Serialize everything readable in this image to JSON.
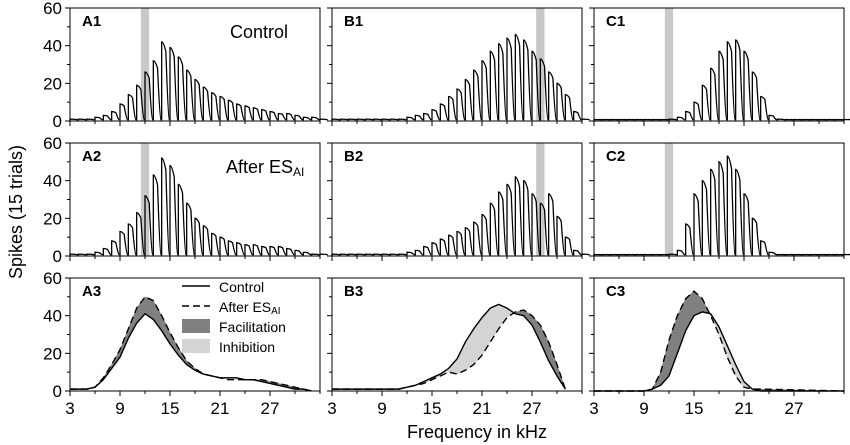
{
  "figure": {
    "ylabel": "Spikes (15 trials)",
    "xlabel": "Frequency in kHz",
    "x_ticks": [
      3,
      9,
      15,
      21,
      27
    ],
    "y_ticks": [
      0,
      20,
      40,
      60
    ],
    "ylim": [
      0,
      60
    ],
    "xlim": [
      3,
      33
    ]
  },
  "colors": {
    "axis": "#000000",
    "highlight": "#c8c8c8",
    "facilitation": "#808080",
    "inhibition": "#d4d4d4"
  },
  "annotations": {
    "control": "Control",
    "after_prefix": "After ES",
    "after_sub": "AI"
  },
  "legend": {
    "control": "Control",
    "after_prefix": "After ES",
    "after_sub": "AI",
    "facilitation": "Facilitation",
    "inhibition": "Inhibition"
  },
  "panels": [
    {
      "id": "A1",
      "label": "A1",
      "annotation": "control"
    },
    {
      "id": "B1",
      "label": "B1"
    },
    {
      "id": "C1",
      "label": "C1"
    },
    {
      "id": "A2",
      "label": "A2",
      "annotation": "after"
    },
    {
      "id": "B2",
      "label": "B2"
    },
    {
      "id": "C2",
      "label": "C2"
    },
    {
      "id": "A3",
      "label": "A3",
      "legend": true
    },
    {
      "id": "B3",
      "label": "B3"
    },
    {
      "id": "C3",
      "label": "C3"
    }
  ],
  "chart_data": [
    {
      "id": "A1",
      "type": "raster",
      "title": "Control",
      "step_khz": 1,
      "first_khz": 3,
      "highlight_khz": [
        11.5,
        12.5
      ],
      "peaks": [
        1,
        1,
        1,
        2,
        3,
        5,
        9,
        14,
        19,
        26,
        32,
        42,
        39,
        34,
        27,
        22,
        18,
        15,
        13,
        11,
        9,
        8,
        7,
        6,
        5,
        4,
        4,
        3,
        2,
        2,
        1
      ]
    },
    {
      "id": "B1",
      "type": "raster",
      "step_khz": 1,
      "first_khz": 3,
      "highlight_khz": [
        27.5,
        28.5
      ],
      "peaks": [
        1,
        1,
        1,
        1,
        1,
        1,
        1,
        1,
        1,
        2,
        3,
        4,
        6,
        9,
        13,
        17,
        22,
        27,
        32,
        37,
        41,
        44,
        46,
        43,
        37,
        33,
        26,
        20,
        14,
        5,
        1
      ]
    },
    {
      "id": "C1",
      "type": "raster",
      "step_khz": 1,
      "first_khz": 3,
      "highlight_khz": [
        11.5,
        12.5
      ],
      "peaks": [
        0,
        0,
        0,
        0,
        0,
        0,
        0,
        0,
        0,
        1,
        2,
        5,
        10,
        19,
        28,
        37,
        42,
        43,
        37,
        26,
        13,
        3,
        1,
        0,
        0,
        0,
        0,
        0,
        0,
        0,
        0
      ]
    },
    {
      "id": "A2",
      "type": "raster",
      "title": "After ESAI",
      "step_khz": 1,
      "first_khz": 3,
      "highlight_khz": [
        11.5,
        12.5
      ],
      "peaks": [
        1,
        1,
        1,
        2,
        4,
        8,
        13,
        17,
        23,
        32,
        43,
        52,
        48,
        38,
        28,
        20,
        16,
        12,
        10,
        8,
        7,
        6,
        6,
        5,
        5,
        5,
        4,
        3,
        2,
        1,
        1
      ]
    },
    {
      "id": "B2",
      "type": "raster",
      "step_khz": 1,
      "first_khz": 3,
      "highlight_khz": [
        27.5,
        28.5
      ],
      "peaks": [
        1,
        1,
        1,
        1,
        1,
        1,
        1,
        1,
        1,
        2,
        3,
        5,
        7,
        9,
        11,
        13,
        15,
        18,
        22,
        28,
        34,
        38,
        42,
        40,
        33,
        28,
        33,
        21,
        10,
        3,
        1
      ]
    },
    {
      "id": "C2",
      "type": "raster",
      "step_khz": 1,
      "first_khz": 3,
      "highlight_khz": [
        11.5,
        12.5
      ],
      "peaks": [
        0,
        0,
        0,
        0,
        0,
        0,
        0,
        0,
        0,
        1,
        3,
        17,
        33,
        40,
        46,
        50,
        53,
        46,
        33,
        20,
        8,
        2,
        0,
        0,
        0,
        0,
        0,
        0,
        0,
        0,
        0
      ]
    },
    {
      "id": "A3",
      "type": "line",
      "x": [
        3,
        5,
        6,
        7,
        8,
        9,
        10,
        11,
        12,
        13,
        14,
        15,
        16,
        17,
        18,
        19,
        20,
        21,
        22,
        23,
        24,
        25,
        26,
        27,
        28,
        29,
        30,
        31,
        32
      ],
      "series": [
        {
          "name": "Control",
          "style": "solid",
          "values": [
            1,
            1,
            2,
            6,
            12,
            18,
            28,
            36,
            41,
            38,
            32,
            25,
            19,
            14,
            11,
            9,
            8,
            7,
            7,
            7,
            6,
            6,
            5,
            4,
            3,
            2,
            1,
            1,
            0
          ]
        },
        {
          "name": "After ESAI",
          "style": "dashed",
          "values": [
            1,
            1,
            2,
            7,
            14,
            22,
            33,
            44,
            50,
            48,
            40,
            31,
            23,
            16,
            12,
            9,
            8,
            7,
            6,
            6,
            6,
            6,
            6,
            5,
            4,
            3,
            2,
            1,
            0
          ]
        }
      ]
    },
    {
      "id": "B3",
      "type": "line",
      "x": [
        3,
        9,
        11,
        12,
        13,
        14,
        15,
        16,
        17,
        18,
        19,
        20,
        21,
        22,
        23,
        24,
        25,
        26,
        27,
        28,
        29,
        30,
        31
      ],
      "series": [
        {
          "name": "Control",
          "style": "solid",
          "values": [
            1,
            1,
            1,
            2,
            3,
            5,
            7,
            9,
            12,
            17,
            26,
            33,
            39,
            44,
            46,
            44,
            41,
            40,
            35,
            26,
            16,
            8,
            1
          ]
        },
        {
          "name": "After ESAI",
          "style": "dashed",
          "values": [
            1,
            1,
            1,
            2,
            3,
            4,
            6,
            8,
            10,
            9,
            11,
            14,
            19,
            26,
            33,
            39,
            42,
            43,
            40,
            35,
            26,
            14,
            1
          ]
        }
      ]
    },
    {
      "id": "C3",
      "type": "line",
      "x": [
        3,
        9,
        10,
        11,
        12,
        13,
        14,
        15,
        16,
        17,
        18,
        19,
        20,
        21,
        22,
        23,
        33
      ],
      "series": [
        {
          "name": "Control",
          "style": "solid",
          "values": [
            0,
            0,
            1,
            3,
            8,
            20,
            32,
            40,
            42,
            41,
            34,
            24,
            14,
            5,
            1,
            0,
            0
          ]
        },
        {
          "name": "After ESAI",
          "style": "dashed",
          "values": [
            0,
            0,
            1,
            10,
            27,
            40,
            49,
            53,
            49,
            40,
            30,
            18,
            8,
            2,
            1,
            1,
            0
          ]
        }
      ]
    }
  ]
}
